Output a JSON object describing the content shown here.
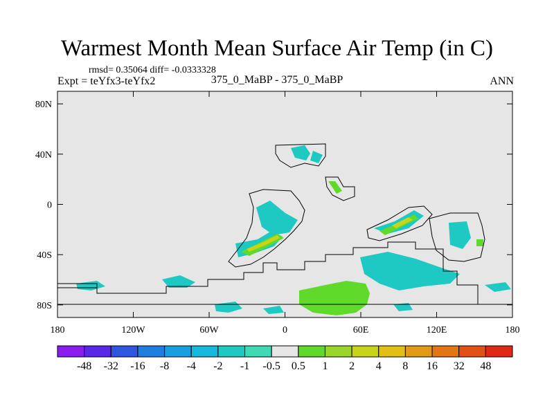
{
  "header": {
    "title": "Warmest Month Mean Surface Air Temp (in C)",
    "stats": "rmsd= 0.35064 diff= -0.0333328",
    "expt": "Expt = teYfx3-teYfx2",
    "case": "375_0_MaBP - 375_0_MaBP",
    "season": "ANN"
  },
  "axes": {
    "x_ticks": [
      "180",
      "120W",
      "60W",
      "0",
      "60E",
      "120E",
      "180"
    ],
    "y_ticks": [
      "80N",
      "40N",
      "0",
      "40S",
      "80S"
    ]
  },
  "colorbar": {
    "labels": [
      "-48",
      "-32",
      "-16",
      "-8",
      "-4",
      "-2",
      "-1",
      "-0.5",
      "0.5",
      "1",
      "2",
      "4",
      "8",
      "16",
      "32",
      "48"
    ],
    "colors": [
      "#8b1cf0",
      "#5a26e8",
      "#2f56e0",
      "#1e7fe0",
      "#199fe0",
      "#16b8dc",
      "#1ec9c4",
      "#3fd9b4",
      "#e6e6e6",
      "#5fd92a",
      "#9ad62a",
      "#c8d41c",
      "#e0c012",
      "#e29a14",
      "#e27514",
      "#e25014",
      "#e02814"
    ]
  },
  "colors": {
    "background": "#e6e6e6",
    "coastline": "#000000"
  }
}
